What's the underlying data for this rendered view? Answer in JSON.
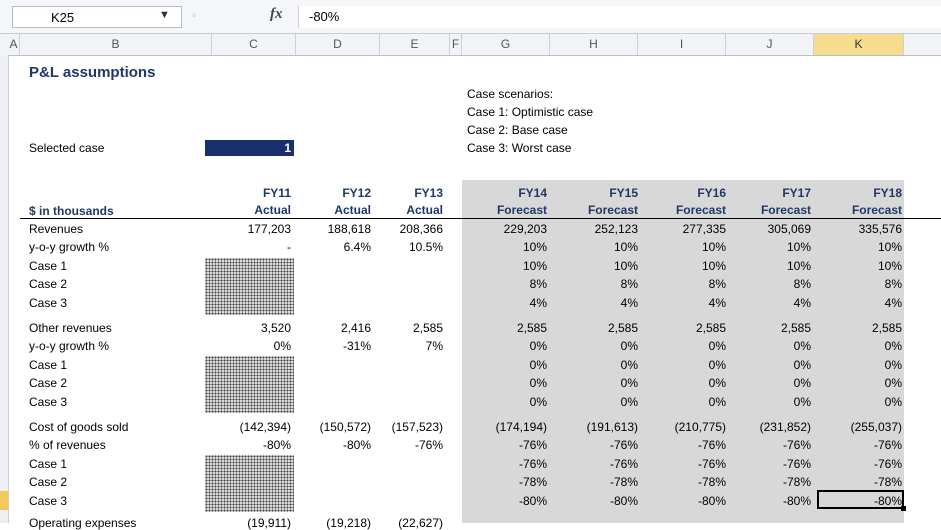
{
  "formula_bar": {
    "name_box": "K25",
    "fx_label": "fx",
    "formula": "-80%"
  },
  "columns": [
    {
      "id": "A",
      "label": "A"
    },
    {
      "id": "B",
      "label": "B"
    },
    {
      "id": "C",
      "label": "C"
    },
    {
      "id": "D",
      "label": "D"
    },
    {
      "id": "E",
      "label": "E"
    },
    {
      "id": "F",
      "label": "F"
    },
    {
      "id": "G",
      "label": "G"
    },
    {
      "id": "H",
      "label": "H"
    },
    {
      "id": "I",
      "label": "I"
    },
    {
      "id": "J",
      "label": "J"
    },
    {
      "id": "K",
      "label": "K"
    }
  ],
  "selected_column": "K",
  "sheet": {
    "title": "P&L assumptions",
    "selected_case_label": "Selected case",
    "selected_case_value": "1",
    "scenarios": [
      "Case scenarios:",
      "Case 1: Optimistic case",
      "Case 2: Base case",
      "Case 3: Worst case"
    ],
    "units_label": "$ in thousands",
    "years": [
      "FY11",
      "FY12",
      "FY13",
      "FY14",
      "FY15",
      "FY16",
      "FY17",
      "FY18"
    ],
    "year_types": [
      "Actual",
      "Actual",
      "Actual",
      "Forecast",
      "Forecast",
      "Forecast",
      "Forecast",
      "Forecast"
    ],
    "rows": [
      {
        "label": "Revenues",
        "values": [
          "177,203",
          "188,618",
          "208,366",
          "229,203",
          "252,123",
          "277,335",
          "305,069",
          "335,576"
        ]
      },
      {
        "label": "y-o-y growth %",
        "values": [
          "-",
          "6.4%",
          "10.5%",
          "10%",
          "10%",
          "10%",
          "10%",
          "10%"
        ]
      },
      {
        "label": "Case 1",
        "values": [
          "",
          "",
          "",
          "10%",
          "10%",
          "10%",
          "10%",
          "10%"
        ]
      },
      {
        "label": "Case 2",
        "values": [
          "",
          "",
          "",
          "8%",
          "8%",
          "8%",
          "8%",
          "8%"
        ]
      },
      {
        "label": "Case 3",
        "values": [
          "",
          "",
          "",
          "4%",
          "4%",
          "4%",
          "4%",
          "4%"
        ]
      },
      {
        "label": "Other revenues",
        "values": [
          "3,520",
          "2,416",
          "2,585",
          "2,585",
          "2,585",
          "2,585",
          "2,585",
          "2,585"
        ]
      },
      {
        "label": "y-o-y growth %",
        "values": [
          "0%",
          "-31%",
          "7%",
          "0%",
          "0%",
          "0%",
          "0%",
          "0%"
        ]
      },
      {
        "label": "Case 1",
        "values": [
          "",
          "",
          "",
          "0%",
          "0%",
          "0%",
          "0%",
          "0%"
        ]
      },
      {
        "label": "Case 2",
        "values": [
          "",
          "",
          "",
          "0%",
          "0%",
          "0%",
          "0%",
          "0%"
        ]
      },
      {
        "label": "Case 3",
        "values": [
          "",
          "",
          "",
          "0%",
          "0%",
          "0%",
          "0%",
          "0%"
        ]
      },
      {
        "label": "Cost of goods sold",
        "values": [
          "(142,394)",
          "(150,572)",
          "(157,523)",
          "(174,194)",
          "(191,613)",
          "(210,775)",
          "(231,852)",
          "(255,037)"
        ]
      },
      {
        "label": "% of revenues",
        "values": [
          "-80%",
          "-80%",
          "-76%",
          "-76%",
          "-76%",
          "-76%",
          "-76%",
          "-76%"
        ]
      },
      {
        "label": "Case 1",
        "values": [
          "",
          "",
          "",
          "-76%",
          "-76%",
          "-76%",
          "-76%",
          "-76%"
        ]
      },
      {
        "label": "Case 2",
        "values": [
          "",
          "",
          "",
          "-78%",
          "-78%",
          "-78%",
          "-78%",
          "-78%"
        ]
      },
      {
        "label": "Case 3",
        "values": [
          "",
          "",
          "",
          "-80%",
          "-80%",
          "-80%",
          "-80%",
          "-80%"
        ]
      },
      {
        "label": "Operating expenses",
        "values": [
          "(19,911)",
          "(19,218)",
          "(22,627)",
          "",
          "",
          "",
          "",
          ""
        ]
      }
    ]
  }
}
